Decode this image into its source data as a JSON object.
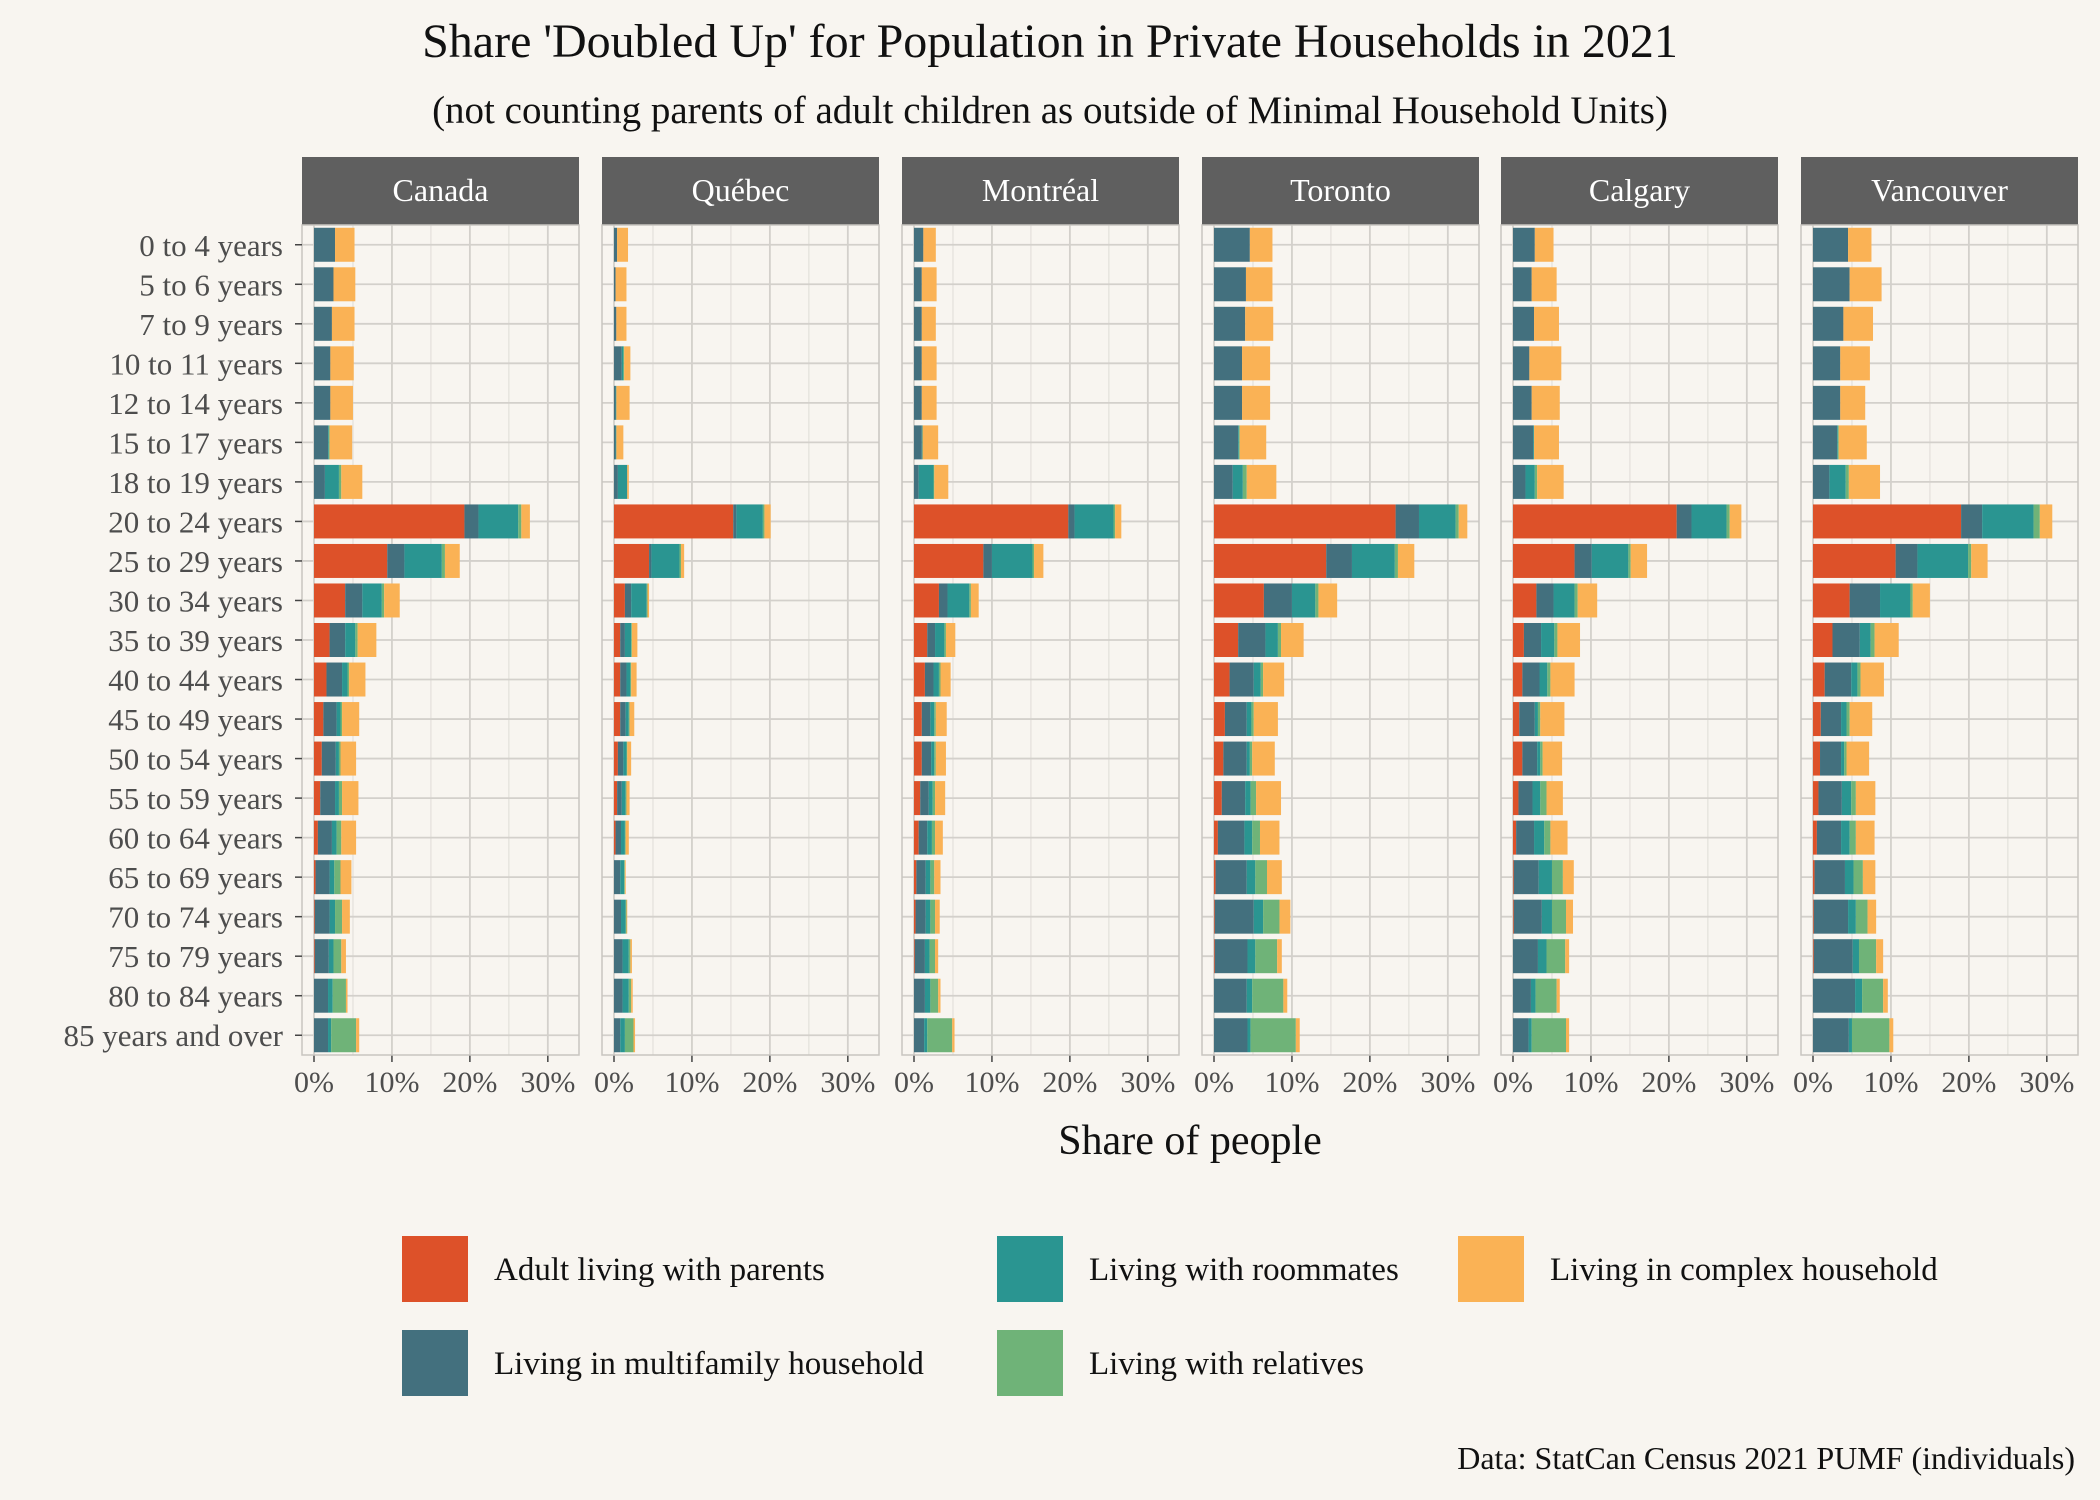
{
  "chart_data": {
    "type": "bar",
    "orientation": "horizontal",
    "stacked": true,
    "title": "Share 'Doubled Up' for Population in Private Households in 2021",
    "subtitle": "(not counting parents of adult children as outside of Minimal Household Units)",
    "xlabel": "Share of people",
    "ylabel": "",
    "xlim": [
      0,
      0.34
    ],
    "x_ticks": [
      "0%",
      "10%",
      "20%",
      "30%"
    ],
    "x_tick_values": [
      0,
      0.1,
      0.2,
      0.3
    ],
    "caption": "Data: StatCan Census 2021 PUMF (individuals)",
    "legend_position": "bottom",
    "grid": true,
    "facets": [
      "Canada",
      "Québec",
      "Montréal",
      "Toronto",
      "Calgary",
      "Vancouver"
    ],
    "categories": [
      "0 to 4 years",
      "5 to 6 years",
      "7 to 9 years",
      "10 to 11 years",
      "12 to 14 years",
      "15 to 17 years",
      "18 to 19 years",
      "20 to 24 years",
      "25 to 29 years",
      "30 to 34 years",
      "35 to 39 years",
      "40 to 44 years",
      "45 to 49 years",
      "50 to 54 years",
      "55 to 59 years",
      "60 to 64 years",
      "65 to 69 years",
      "70 to 74 years",
      "75 to 79 years",
      "80 to 84 years",
      "85 years and over"
    ],
    "series": [
      {
        "name": "Adult living with parents",
        "color": "#dd5129"
      },
      {
        "name": "Living in multifamily household",
        "color": "#43707e"
      },
      {
        "name": "Living with roommates",
        "color": "#2a9591"
      },
      {
        "name": "Living with relatives",
        "color": "#6fb378"
      },
      {
        "name": "Living in complex household",
        "color": "#fab255"
      }
    ],
    "legend_order": [
      "Adult living with parents",
      "Living with roommates",
      "Living in complex household",
      "Living in multifamily household",
      "Living with relatives"
    ],
    "data": {
      "Canada": [
        [
          0,
          0.027,
          0,
          0,
          0.025
        ],
        [
          0,
          0.025,
          0,
          0,
          0.028
        ],
        [
          0,
          0.023,
          0,
          0,
          0.029
        ],
        [
          0,
          0.021,
          0,
          0,
          0.03
        ],
        [
          0,
          0.021,
          0,
          0,
          0.029
        ],
        [
          0,
          0.018,
          0.001,
          0.001,
          0.029
        ],
        [
          0,
          0.014,
          0.018,
          0.003,
          0.027
        ],
        [
          0.193,
          0.018,
          0.051,
          0.004,
          0.011
        ],
        [
          0.094,
          0.022,
          0.048,
          0.004,
          0.019
        ],
        [
          0.04,
          0.022,
          0.025,
          0.003,
          0.02
        ],
        [
          0.02,
          0.02,
          0.013,
          0.003,
          0.024
        ],
        [
          0.016,
          0.02,
          0.007,
          0.002,
          0.021
        ],
        [
          0.012,
          0.017,
          0.005,
          0.002,
          0.022
        ],
        [
          0.01,
          0.018,
          0.004,
          0.002,
          0.02
        ],
        [
          0.008,
          0.019,
          0.005,
          0.004,
          0.021
        ],
        [
          0.005,
          0.018,
          0.006,
          0.006,
          0.019
        ],
        [
          0.002,
          0.018,
          0.006,
          0.008,
          0.014
        ],
        [
          0.001,
          0.019,
          0.007,
          0.009,
          0.01
        ],
        [
          0.001,
          0.018,
          0.006,
          0.01,
          0.006
        ],
        [
          0,
          0.018,
          0.006,
          0.017,
          0.002
        ],
        [
          0,
          0.018,
          0.004,
          0.032,
          0.004
        ]
      ],
      "Québec": [
        [
          0,
          0.004,
          0,
          0,
          0.014
        ],
        [
          0,
          0.002,
          0,
          0,
          0.014
        ],
        [
          0,
          0.003,
          0,
          0,
          0.013
        ],
        [
          0,
          0.01,
          0.002,
          0.001,
          0.008
        ],
        [
          0,
          0.002,
          0.001,
          0,
          0.017
        ],
        [
          0,
          0.002,
          0.001,
          0,
          0.009
        ],
        [
          0,
          0.005,
          0.012,
          0,
          0.002
        ],
        [
          0.153,
          0.004,
          0.034,
          0.002,
          0.008
        ],
        [
          0.045,
          0.003,
          0.036,
          0.002,
          0.004
        ],
        [
          0.014,
          0.008,
          0.02,
          0.001,
          0.002
        ],
        [
          0.008,
          0.006,
          0.008,
          0.001,
          0.007
        ],
        [
          0.008,
          0.008,
          0.005,
          0.001,
          0.007
        ],
        [
          0.008,
          0.007,
          0.004,
          0.001,
          0.006
        ],
        [
          0.005,
          0.007,
          0.004,
          0.001,
          0.005
        ],
        [
          0.004,
          0.006,
          0.005,
          0.001,
          0.004
        ],
        [
          0.002,
          0.007,
          0.005,
          0.001,
          0.004
        ],
        [
          0,
          0.008,
          0.005,
          0.001,
          0.001
        ],
        [
          0,
          0.009,
          0.006,
          0.001,
          0.001
        ],
        [
          0,
          0.011,
          0.008,
          0.002,
          0.002
        ],
        [
          0,
          0.011,
          0.008,
          0.003,
          0.002
        ],
        [
          0,
          0.008,
          0.006,
          0.011,
          0.002
        ]
      ],
      "Montréal": [
        [
          0,
          0.012,
          0,
          0,
          0.016
        ],
        [
          0,
          0.01,
          0,
          0,
          0.019
        ],
        [
          0,
          0.01,
          0,
          0,
          0.018
        ],
        [
          0,
          0.01,
          0,
          0,
          0.019
        ],
        [
          0,
          0.01,
          0,
          0,
          0.019
        ],
        [
          0,
          0.01,
          0.001,
          0,
          0.02
        ],
        [
          0,
          0.006,
          0.019,
          0.001,
          0.018
        ],
        [
          0.198,
          0.008,
          0.05,
          0.002,
          0.008
        ],
        [
          0.089,
          0.011,
          0.052,
          0.002,
          0.012
        ],
        [
          0.032,
          0.011,
          0.028,
          0.002,
          0.01
        ],
        [
          0.017,
          0.01,
          0.012,
          0.002,
          0.012
        ],
        [
          0.014,
          0.011,
          0.007,
          0.002,
          0.013
        ],
        [
          0.01,
          0.011,
          0.005,
          0.002,
          0.014
        ],
        [
          0.01,
          0.012,
          0.004,
          0.002,
          0.013
        ],
        [
          0.008,
          0.011,
          0.005,
          0.003,
          0.013
        ],
        [
          0.006,
          0.011,
          0.006,
          0.004,
          0.01
        ],
        [
          0.003,
          0.012,
          0.006,
          0.005,
          0.008
        ],
        [
          0.002,
          0.013,
          0.006,
          0.006,
          0.006
        ],
        [
          0.001,
          0.013,
          0.006,
          0.007,
          0.004
        ],
        [
          0,
          0.014,
          0.007,
          0.01,
          0.003
        ],
        [
          0,
          0.013,
          0.004,
          0.032,
          0.003
        ]
      ],
      "Toronto": [
        [
          0,
          0.046,
          0,
          0,
          0.029
        ],
        [
          0,
          0.041,
          0,
          0,
          0.034
        ],
        [
          0,
          0.04,
          0,
          0,
          0.036
        ],
        [
          0,
          0.036,
          0,
          0,
          0.036
        ],
        [
          0,
          0.036,
          0,
          0,
          0.036
        ],
        [
          0,
          0.031,
          0.001,
          0.001,
          0.034
        ],
        [
          0,
          0.024,
          0.013,
          0.005,
          0.038
        ],
        [
          0.233,
          0.03,
          0.047,
          0.004,
          0.011
        ],
        [
          0.144,
          0.033,
          0.055,
          0.004,
          0.021
        ],
        [
          0.064,
          0.036,
          0.03,
          0.004,
          0.024
        ],
        [
          0.031,
          0.035,
          0.016,
          0.004,
          0.029
        ],
        [
          0.02,
          0.031,
          0.009,
          0.003,
          0.027
        ],
        [
          0.014,
          0.028,
          0.006,
          0.003,
          0.031
        ],
        [
          0.012,
          0.03,
          0.004,
          0.003,
          0.029
        ],
        [
          0.01,
          0.03,
          0.007,
          0.007,
          0.032
        ],
        [
          0.005,
          0.034,
          0.01,
          0.01,
          0.025
        ],
        [
          0.002,
          0.04,
          0.011,
          0.015,
          0.019
        ],
        [
          0.001,
          0.05,
          0.012,
          0.021,
          0.014
        ],
        [
          0.001,
          0.042,
          0.01,
          0.028,
          0.006
        ],
        [
          0,
          0.042,
          0.007,
          0.04,
          0.005
        ],
        [
          0,
          0.043,
          0.004,
          0.058,
          0.005
        ]
      ],
      "Calgary": [
        [
          0,
          0.028,
          0,
          0,
          0.024
        ],
        [
          0,
          0.024,
          0,
          0,
          0.032
        ],
        [
          0,
          0.027,
          0,
          0,
          0.032
        ],
        [
          0,
          0.021,
          0,
          0,
          0.041
        ],
        [
          0,
          0.024,
          0,
          0,
          0.036
        ],
        [
          0,
          0.026,
          0.001,
          0,
          0.032
        ],
        [
          0,
          0.016,
          0.012,
          0.003,
          0.034
        ],
        [
          0.21,
          0.019,
          0.045,
          0.004,
          0.015
        ],
        [
          0.079,
          0.022,
          0.047,
          0.003,
          0.021
        ],
        [
          0.03,
          0.022,
          0.027,
          0.004,
          0.025
        ],
        [
          0.014,
          0.022,
          0.017,
          0.004,
          0.029
        ],
        [
          0.012,
          0.022,
          0.01,
          0.004,
          0.031
        ],
        [
          0.008,
          0.02,
          0.004,
          0.003,
          0.031
        ],
        [
          0.012,
          0.019,
          0.004,
          0.003,
          0.025
        ],
        [
          0.007,
          0.018,
          0.01,
          0.008,
          0.021
        ],
        [
          0.004,
          0.023,
          0.013,
          0.008,
          0.022
        ],
        [
          0.001,
          0.032,
          0.017,
          0.014,
          0.014
        ],
        [
          0.001,
          0.036,
          0.013,
          0.018,
          0.009
        ],
        [
          0,
          0.032,
          0.011,
          0.024,
          0.005
        ],
        [
          0,
          0.023,
          0.006,
          0.027,
          0.004
        ],
        [
          0,
          0.02,
          0.004,
          0.044,
          0.004
        ]
      ],
      "Vancouver": [
        [
          0,
          0.045,
          0,
          0,
          0.03
        ],
        [
          0,
          0.047,
          0,
          0,
          0.041
        ],
        [
          0,
          0.039,
          0,
          0,
          0.038
        ],
        [
          0,
          0.035,
          0,
          0,
          0.038
        ],
        [
          0,
          0.035,
          0,
          0,
          0.032
        ],
        [
          0,
          0.031,
          0.001,
          0.001,
          0.036
        ],
        [
          0,
          0.021,
          0.021,
          0.004,
          0.04
        ],
        [
          0.19,
          0.027,
          0.066,
          0.008,
          0.016
        ],
        [
          0.106,
          0.028,
          0.065,
          0.004,
          0.021
        ],
        [
          0.047,
          0.039,
          0.039,
          0.003,
          0.022
        ],
        [
          0.025,
          0.035,
          0.014,
          0.005,
          0.031
        ],
        [
          0.015,
          0.034,
          0.008,
          0.004,
          0.03
        ],
        [
          0.01,
          0.026,
          0.007,
          0.004,
          0.029
        ],
        [
          0.009,
          0.027,
          0.004,
          0.003,
          0.029
        ],
        [
          0.007,
          0.03,
          0.012,
          0.006,
          0.025
        ],
        [
          0.005,
          0.031,
          0.011,
          0.008,
          0.024
        ],
        [
          0.002,
          0.039,
          0.011,
          0.012,
          0.016
        ],
        [
          0.001,
          0.044,
          0.01,
          0.015,
          0.011
        ],
        [
          0.001,
          0.05,
          0.008,
          0.022,
          0.009
        ],
        [
          0,
          0.054,
          0.009,
          0.027,
          0.006
        ],
        [
          0,
          0.046,
          0.004,
          0.048,
          0.005
        ]
      ]
    }
  }
}
